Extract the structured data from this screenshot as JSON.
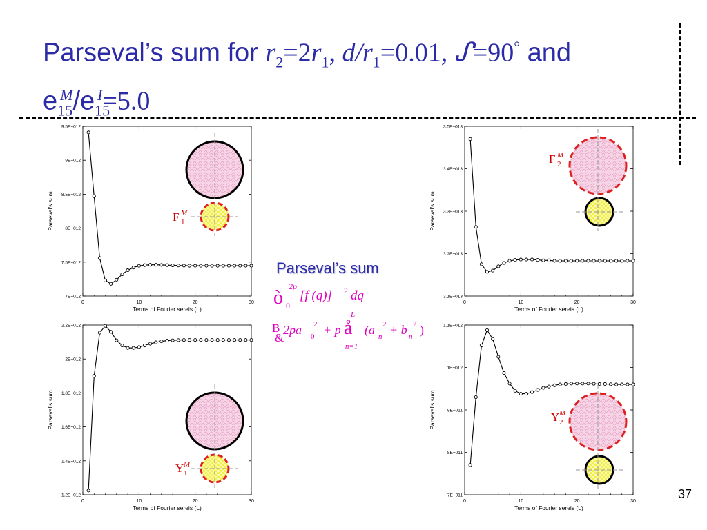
{
  "title": {
    "line1_prefix": "Parseval’s sum for ",
    "r2_sym": "r",
    "r2_sub": "2",
    "eq1": "=2",
    "r1_sym": "r",
    "r1_sub": "1",
    "comma1": ", ",
    "dr_sym": "d/r",
    "dr_sub": "1",
    "eq2": "=0.01, ",
    "theta_sym": "ᔑ",
    "eq3": "=90",
    "deg": "°",
    "and": " and",
    "e_m": "e",
    "e_m_sub": "15",
    "e_m_sup": "M",
    "slash": "/e",
    "e_i_sub": "15",
    "e_i_sup": "I",
    "eq4": "=5.0"
  },
  "page_number": "37",
  "formula": {
    "title": "Parseval’s sum",
    "integral_sym": "ò",
    "int_lower": "0",
    "int_upper": "2p",
    "integrand": "[f (q)]",
    "integrand_sup": "2",
    "dq": "dq",
    "b_sym": "B",
    "amp_sym": "&",
    "term1": "2pa",
    "term1_sub": "0",
    "term1_sup": "2",
    "plus_p": "+ p",
    "sum_sym": "å",
    "sum_upper": "L",
    "sum_lower": "n=1",
    "paren_open": "(a",
    "a_sub": "n",
    "a_sup": "2",
    "plus_b": "+ b",
    "b_sub": "n",
    "b_sup": "2",
    "paren_close": ")"
  },
  "chart_data": [
    {
      "type": "line",
      "xlabel": "Terms of Fourier sereis (L)",
      "ylabel": "Parseval's sum",
      "xlim": [
        0,
        30
      ],
      "ylim": [
        7000000000000.0,
        9500000000000.0
      ],
      "xticks": [
        "0",
        "10",
        "20",
        "30"
      ],
      "yticks": [
        "7E+012",
        "7.5E+012",
        "8E+012",
        "8.5E+012",
        "9E+012",
        "9.5E+012"
      ],
      "x": [
        1,
        2,
        3,
        4,
        5,
        6,
        7,
        8,
        9,
        10,
        11,
        12,
        13,
        14,
        15,
        16,
        17,
        18,
        19,
        20,
        21,
        22,
        23,
        24,
        25,
        26,
        27,
        28,
        29,
        30
      ],
      "values": [
        9410000000000.0,
        8470000000000.0,
        7560000000000.0,
        7230000000000.0,
        7180000000000.0,
        7240000000000.0,
        7320000000000.0,
        7380000000000.0,
        7420000000000.0,
        7445000000000.0,
        7455000000000.0,
        7460000000000.0,
        7460000000000.0,
        7458000000000.0,
        7455000000000.0,
        7452000000000.0,
        7450000000000.0,
        7448000000000.0,
        7447000000000.0,
        7446000000000.0,
        7446000000000.0,
        7446000000000.0,
        7446000000000.0,
        7446000000000.0,
        7446000000000.0,
        7446000000000.0,
        7446000000000.0,
        7446000000000.0,
        7446000000000.0,
        7446000000000.0
      ],
      "label_main": "F",
      "label_sub": "1",
      "label_sup": "M",
      "inset": "large-pink-top-small-yellow-bottom-red-dashed-small"
    },
    {
      "type": "line",
      "xlabel": "Terms of Fourier sereis (L)",
      "ylabel": "Parseval's sum",
      "xlim": [
        0,
        30
      ],
      "ylim": [
        31000000000000.0,
        35000000000000.0
      ],
      "xticks": [
        "0",
        "10",
        "20",
        "30"
      ],
      "yticks": [
        "3.1E+013",
        "3.2E+013",
        "3.3E+013",
        "3.4E+013",
        "3.5E+013"
      ],
      "x": [
        1,
        2,
        3,
        4,
        5,
        6,
        7,
        8,
        9,
        10,
        11,
        12,
        13,
        14,
        15,
        16,
        17,
        18,
        19,
        20,
        21,
        22,
        23,
        24,
        25,
        26,
        27,
        28,
        29,
        30
      ],
      "values": [
        34700000000000.0,
        32630000000000.0,
        31750000000000.0,
        31570000000000.0,
        31600000000000.0,
        31700000000000.0,
        31780000000000.0,
        31830000000000.0,
        31850000000000.0,
        31860000000000.0,
        31860000000000.0,
        31860000000000.0,
        31850000000000.0,
        31840000000000.0,
        31840000000000.0,
        31830000000000.0,
        31830000000000.0,
        31830000000000.0,
        31830000000000.0,
        31830000000000.0,
        31830000000000.0,
        31830000000000.0,
        31830000000000.0,
        31830000000000.0,
        31830000000000.0,
        31830000000000.0,
        31830000000000.0,
        31830000000000.0,
        31830000000000.0,
        31830000000000.0
      ],
      "label_main": "F",
      "label_sub": "2",
      "label_sup": "M",
      "inset": "large-pink-red-dashed-top-small-yellow-bottom"
    },
    {
      "type": "line",
      "xlabel": "Terms of Fourier sereis (L)",
      "ylabel": "Parseval's sum",
      "xlim": [
        0,
        30
      ],
      "ylim": [
        1200000000000.0,
        2200000000000.0
      ],
      "xticks": [
        "0",
        "10",
        "20",
        "30"
      ],
      "yticks": [
        "1.2E+012",
        "1.4E+012",
        "1.6E+012",
        "1.8E+012",
        "2E+012",
        "2.2E+012"
      ],
      "x": [
        1,
        2,
        3,
        4,
        5,
        6,
        7,
        8,
        9,
        10,
        11,
        12,
        13,
        14,
        15,
        16,
        17,
        18,
        19,
        20,
        21,
        22,
        23,
        24,
        25,
        26,
        27,
        28,
        29,
        30
      ],
      "values": [
        1225000000000.0,
        1900000000000.0,
        2155000000000.0,
        2195000000000.0,
        2160000000000.0,
        2110000000000.0,
        2080000000000.0,
        2065000000000.0,
        2065000000000.0,
        2070000000000.0,
        2080000000000.0,
        2090000000000.0,
        2098000000000.0,
        2104000000000.0,
        2108000000000.0,
        2110000000000.0,
        2111000000000.0,
        2112000000000.0,
        2112000000000.0,
        2112000000000.0,
        2112000000000.0,
        2112000000000.0,
        2112000000000.0,
        2112000000000.0,
        2112000000000.0,
        2112000000000.0,
        2112000000000.0,
        2112000000000.0,
        2112000000000.0,
        2112000000000.0
      ],
      "label_main": "Y",
      "label_sub": "1",
      "label_sup": "M",
      "inset": "large-pink-top-small-yellow-bottom-red-dashed-small"
    },
    {
      "type": "line",
      "xlabel": "Terms of Fourier sereis (L)",
      "ylabel": "Parseval's sum",
      "xlim": [
        0,
        30
      ],
      "ylim": [
        700000000000.0,
        1100000000000.0
      ],
      "xticks": [
        "0",
        "10",
        "20",
        "30"
      ],
      "yticks": [
        "7E+011",
        "8E+011",
        "9E+011",
        "1E+012",
        "1.1E+012"
      ],
      "x": [
        1,
        2,
        3,
        4,
        5,
        6,
        7,
        8,
        9,
        10,
        11,
        12,
        13,
        14,
        15,
        16,
        17,
        18,
        19,
        20,
        21,
        22,
        23,
        24,
        25,
        26,
        27,
        28,
        29,
        30
      ],
      "values": [
        770000000000.0,
        930000000000.0,
        1052000000000.0,
        1088000000000.0,
        1067000000000.0,
        1025000000000.0,
        987000000000.0,
        962000000000.0,
        945000000000.0,
        938000000000.0,
        938000000000.0,
        942000000000.0,
        947000000000.0,
        952000000000.0,
        955000000000.0,
        958000000000.0,
        960000000000.0,
        961000000000.0,
        962000000000.0,
        962000000000.0,
        962000000000.0,
        962000000000.0,
        961500000000.0,
        961000000000.0,
        961000000000.0,
        960500000000.0,
        960000000000.0,
        960000000000.0,
        960000000000.0,
        960000000000.0
      ],
      "label_main": "Y",
      "label_sub": "2",
      "label_sup": "M",
      "inset": "large-pink-red-dashed-top-small-yellow-bottom"
    }
  ],
  "colors": {
    "title": "#2b2ba8",
    "formula": "#e000c0",
    "label_red": "#cc0000",
    "pink_fill": "#f6d6e6",
    "yellow_fill": "#f4f046",
    "red_dash": "#e02020"
  }
}
